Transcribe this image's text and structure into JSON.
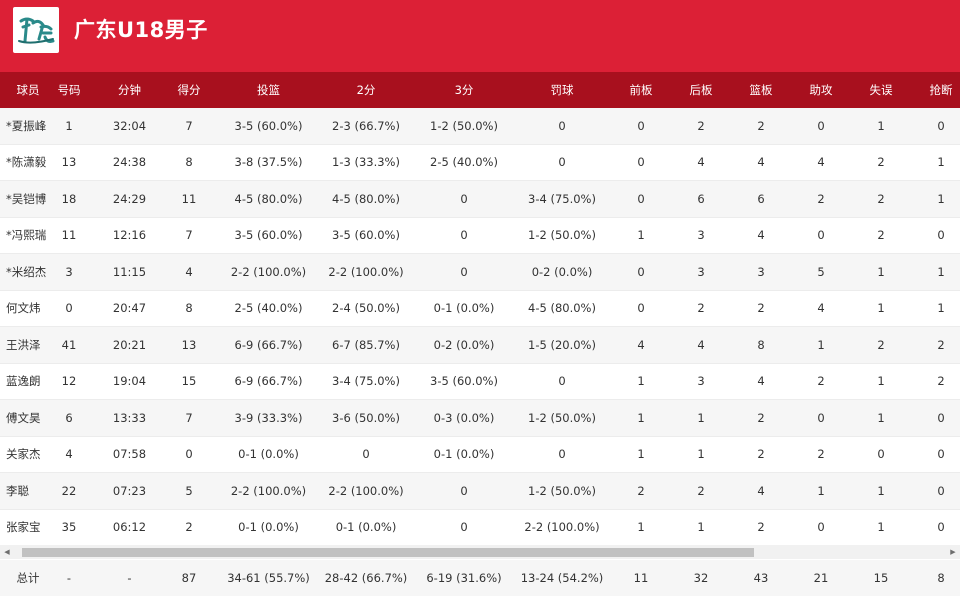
{
  "header": {
    "team_name": "广东U18男子",
    "logo_icon": "team-logo-icon"
  },
  "table": {
    "columns": [
      "球员",
      "号码",
      "分钟",
      "得分",
      "投篮",
      "2分",
      "3分",
      "罚球",
      "前板",
      "后板",
      "篮板",
      "助攻",
      "失误",
      "抢断"
    ],
    "rows": [
      [
        "*夏振峰",
        "1",
        "32:04",
        "7",
        "3-5 (60.0%)",
        "2-3 (66.7%)",
        "1-2 (50.0%)",
        "0",
        "0",
        "2",
        "2",
        "0",
        "1",
        "0"
      ],
      [
        "*陈潇毅",
        "13",
        "24:38",
        "8",
        "3-8 (37.5%)",
        "1-3 (33.3%)",
        "2-5 (40.0%)",
        "0",
        "0",
        "4",
        "4",
        "4",
        "2",
        "1"
      ],
      [
        "*吴铠博",
        "18",
        "24:29",
        "11",
        "4-5 (80.0%)",
        "4-5 (80.0%)",
        "0",
        "3-4 (75.0%)",
        "0",
        "6",
        "6",
        "2",
        "2",
        "1"
      ],
      [
        "*冯熙瑞",
        "11",
        "12:16",
        "7",
        "3-5 (60.0%)",
        "3-5 (60.0%)",
        "0",
        "1-2 (50.0%)",
        "1",
        "3",
        "4",
        "0",
        "2",
        "0"
      ],
      [
        "*米绍杰",
        "3",
        "11:15",
        "4",
        "2-2 (100.0%)",
        "2-2 (100.0%)",
        "0",
        "0-2 (0.0%)",
        "0",
        "3",
        "3",
        "5",
        "1",
        "1"
      ],
      [
        "何文炜",
        "0",
        "20:47",
        "8",
        "2-5 (40.0%)",
        "2-4 (50.0%)",
        "0-1 (0.0%)",
        "4-5 (80.0%)",
        "0",
        "2",
        "2",
        "4",
        "1",
        "1"
      ],
      [
        "王洪泽",
        "41",
        "20:21",
        "13",
        "6-9 (66.7%)",
        "6-7 (85.7%)",
        "0-2 (0.0%)",
        "1-5 (20.0%)",
        "4",
        "4",
        "8",
        "1",
        "2",
        "2"
      ],
      [
        "蓝逸朗",
        "12",
        "19:04",
        "15",
        "6-9 (66.7%)",
        "3-4 (75.0%)",
        "3-5 (60.0%)",
        "0",
        "1",
        "3",
        "4",
        "2",
        "1",
        "2"
      ],
      [
        "傅文昊",
        "6",
        "13:33",
        "7",
        "3-9 (33.3%)",
        "3-6 (50.0%)",
        "0-3 (0.0%)",
        "1-2 (50.0%)",
        "1",
        "1",
        "2",
        "0",
        "1",
        "0"
      ],
      [
        "关家杰",
        "4",
        "07:58",
        "0",
        "0-1 (0.0%)",
        "0",
        "0-1 (0.0%)",
        "0",
        "1",
        "1",
        "2",
        "2",
        "0",
        "0"
      ],
      [
        "李聪",
        "22",
        "07:23",
        "5",
        "2-2 (100.0%)",
        "2-2 (100.0%)",
        "0",
        "1-2 (50.0%)",
        "2",
        "2",
        "4",
        "1",
        "1",
        "0"
      ],
      [
        "张家宝",
        "35",
        "06:12",
        "2",
        "0-1 (0.0%)",
        "0-1 (0.0%)",
        "0",
        "2-2 (100.0%)",
        "1",
        "1",
        "2",
        "0",
        "1",
        "0"
      ]
    ],
    "total": [
      "总计",
      "-",
      "-",
      "87",
      "34-61 (55.7%)",
      "28-42 (66.7%)",
      "6-19 (31.6%)",
      "13-24 (54.2%)",
      "11",
      "32",
      "43",
      "21",
      "15",
      "8"
    ]
  },
  "scrollbar": {
    "left_arrow_icon": "scroll-left-icon",
    "right_arrow_icon": "scroll-right-icon",
    "left_arrow": "◀",
    "right_arrow": "▶"
  },
  "colors": {
    "header_bg": "#dc2036",
    "table_header_bg": "#a8101e",
    "row_alt_bg": "#f6f6f6"
  }
}
